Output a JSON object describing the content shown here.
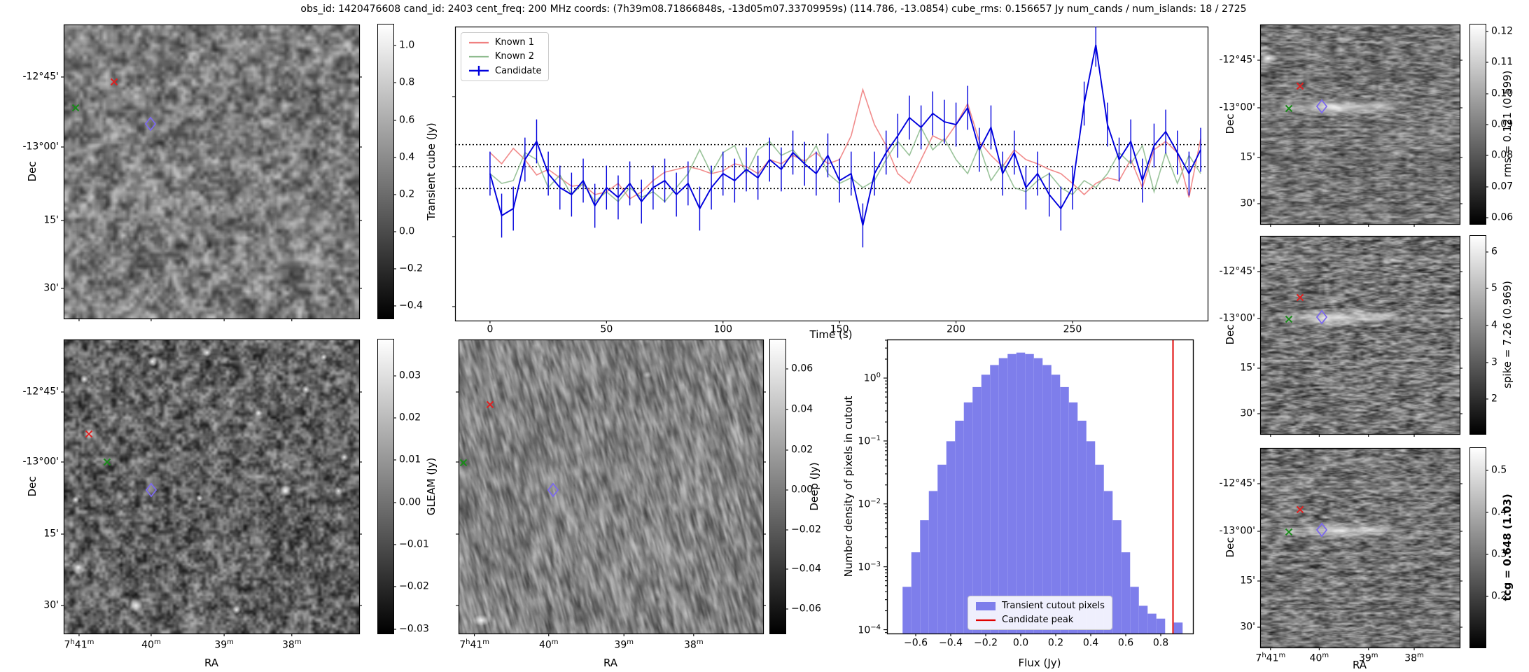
{
  "title": "obs_id: 1420476608 cand_id: 2403 cent_freq: 200 MHz coords: (7h39m08.71866848s, -13d05m07.33709959s) (114.786, -13.0854) cube_rms: 0.156657 Jy num_cands / num_islands: 18 / 2725",
  "colors": {
    "known1": "#f08080",
    "known2": "#8fbc8f",
    "candidate": "#0000dd",
    "hist_bar": "#7e7eeb",
    "candidate_peak": "#e00000",
    "marker_red": "#dd2222",
    "marker_green": "#1a8a1a",
    "marker_diamond": "#7b68ee",
    "dotted_line": "#000000"
  },
  "axes": {
    "dec_label": "Dec",
    "ra_label": "RA",
    "dec_ticks": [
      "-12°45'",
      "-13°00'",
      "15'",
      "30'"
    ],
    "ra_ticks": [
      "7h41m",
      "40m",
      "39m",
      "38m"
    ]
  },
  "panels": {
    "transient_cube": {
      "colorbar_label": "Transient cube (Jy)",
      "cb_ticks": [
        "1.0",
        "0.8",
        "0.6",
        "0.4",
        "0.2",
        "0.0",
        "−0.2",
        "−0.4"
      ]
    },
    "lightcurve": {
      "xlabel": "Time (s)",
      "xticks": [
        "0",
        "50",
        "100",
        "150",
        "200",
        "250"
      ]
    },
    "gleam": {
      "colorbar_label": "GLEAM (Jy)",
      "cb_ticks": [
        "0.03",
        "0.02",
        "0.01",
        "0.00",
        "−0.01",
        "−0.02",
        "−0.03"
      ]
    },
    "deep": {
      "colorbar_label": "Deep (Jy)",
      "cb_ticks": [
        "0.06",
        "0.04",
        "0.02",
        "0.00",
        "−0.02",
        "−0.04",
        "−0.06"
      ]
    },
    "histogram": {
      "ylabel": "Number density of pixels in cutout",
      "xlabel": "Flux (Jy)",
      "yticks": [
        "10^0",
        "10^−1",
        "10^−2",
        "10^−3",
        "10^−4"
      ],
      "xticks": [
        "−0.6",
        "−0.4",
        "−0.2",
        "0.0",
        "0.2",
        "0.4",
        "0.6",
        "0.8"
      ],
      "legend": [
        "Transient cutout pixels",
        "Candidate peak"
      ]
    },
    "right_panels": [
      {
        "colorbar_label": "rms = 0.121 (0.599)",
        "cb_ticks": [
          "0.12",
          "0.11",
          "0.10",
          "0.09",
          "0.08",
          "0.07",
          "0.06"
        ]
      },
      {
        "colorbar_label": "spike = 7.26 (0.969)",
        "cb_ticks": [
          "6",
          "5",
          "4",
          "3",
          "2"
        ]
      },
      {
        "colorbar_label": "tcg = 0.648 (1.03)",
        "cb_ticks": [
          "0.5",
          "0.4",
          "0.3",
          "0.2"
        ]
      }
    ]
  },
  "chart_data": [
    {
      "type": "line",
      "title": "",
      "xlabel": "Time (s)",
      "ylabel": "",
      "xlim": [
        -15,
        308
      ],
      "ylim": [
        -1.1,
        1.0
      ],
      "hlines": [
        0.157,
        0.0,
        -0.157
      ],
      "legend_position": "upper left",
      "x": [
        0,
        5,
        10,
        15,
        20,
        25,
        30,
        35,
        40,
        45,
        50,
        55,
        60,
        65,
        70,
        75,
        80,
        85,
        90,
        95,
        100,
        105,
        110,
        115,
        120,
        125,
        130,
        135,
        140,
        145,
        150,
        155,
        160,
        165,
        170,
        175,
        180,
        185,
        190,
        195,
        200,
        205,
        210,
        215,
        220,
        225,
        230,
        235,
        240,
        245,
        250,
        255,
        260,
        265,
        270,
        275,
        280,
        285,
        290,
        295,
        300,
        305
      ],
      "series": [
        {
          "name": "Known 1",
          "values": [
            0.1,
            0.02,
            0.13,
            0.05,
            -0.06,
            -0.02,
            -0.08,
            -0.14,
            -0.13,
            -0.2,
            -0.18,
            -0.12,
            -0.23,
            -0.18,
            -0.1,
            -0.04,
            -0.02,
            0.0,
            -0.02,
            -0.05,
            -0.03,
            0.02,
            0.0,
            -0.05,
            0.05,
            0.02,
            0.08,
            0.04,
            0.1,
            0.02,
            0.05,
            0.22,
            0.55,
            0.3,
            0.15,
            -0.05,
            -0.12,
            0.05,
            0.22,
            0.18,
            0.3,
            0.45,
            0.18,
            0.08,
            0.0,
            0.12,
            0.05,
            0.02,
            -0.02,
            -0.05,
            -0.12,
            -0.2,
            -0.12,
            -0.08,
            -0.1,
            0.05,
            -0.15,
            0.12,
            0.18,
            0.1,
            -0.22,
            0.2
          ]
        },
        {
          "name": "Known 2",
          "values": [
            -0.05,
            -0.12,
            -0.1,
            0.1,
            0.05,
            -0.15,
            -0.06,
            -0.2,
            -0.12,
            -0.25,
            -0.18,
            -0.25,
            -0.15,
            -0.22,
            -0.18,
            -0.25,
            -0.15,
            -0.05,
            0.12,
            -0.05,
            0.1,
            0.15,
            -0.05,
            0.12,
            0.18,
            0.08,
            0.12,
            0.02,
            0.15,
            -0.05,
            -0.12,
            -0.08,
            -0.15,
            -0.1,
            0.05,
            0.18,
            0.08,
            0.28,
            0.12,
            0.2,
            0.05,
            -0.05,
            0.15,
            -0.1,
            0.02,
            -0.15,
            -0.18,
            -0.1,
            -0.05,
            -0.15,
            -0.2,
            -0.1,
            -0.15,
            -0.05,
            0.1,
            0.02,
            0.15,
            -0.18,
            0.1,
            -0.12,
            0.08,
            -0.05
          ]
        },
        {
          "name": "Candidate",
          "yerr": 0.157,
          "values": [
            -0.05,
            -0.35,
            -0.3,
            0.05,
            0.18,
            -0.05,
            -0.15,
            -0.2,
            -0.1,
            -0.28,
            -0.15,
            -0.22,
            -0.12,
            -0.25,
            -0.15,
            -0.1,
            -0.2,
            -0.12,
            -0.3,
            -0.15,
            -0.05,
            -0.1,
            -0.02,
            -0.08,
            0.05,
            -0.02,
            0.1,
            0.02,
            -0.05,
            0.08,
            -0.1,
            -0.05,
            -0.42,
            -0.05,
            0.1,
            0.22,
            0.35,
            0.28,
            0.38,
            0.32,
            0.3,
            0.42,
            0.12,
            0.28,
            -0.05,
            0.1,
            -0.15,
            -0.05,
            -0.2,
            -0.3,
            -0.15,
            0.45,
            0.87,
            0.3,
            0.05,
            0.18,
            -0.1,
            0.15,
            0.25,
            0.1,
            -0.05,
            0.12
          ]
        }
      ]
    },
    {
      "type": "bar",
      "title": "",
      "xlabel": "Flux (Jy)",
      "ylabel": "Number density of pixels in cutout",
      "yscale": "log",
      "xlim": [
        -0.764,
        0.984
      ],
      "ylim": [
        8.7e-05,
        4.1
      ],
      "bin_width": 0.05,
      "centers": [
        -0.65,
        -0.6,
        -0.55,
        -0.5,
        -0.45,
        -0.4,
        -0.35,
        -0.3,
        -0.25,
        -0.2,
        -0.15,
        -0.1,
        -0.05,
        0.0,
        0.05,
        0.1,
        0.15,
        0.2,
        0.25,
        0.3,
        0.35,
        0.4,
        0.45,
        0.5,
        0.55,
        0.6,
        0.65,
        0.7,
        0.75,
        0.8,
        0.9
      ],
      "values": [
        0.00048,
        0.0017,
        0.0055,
        0.016,
        0.042,
        0.099,
        0.21,
        0.41,
        0.72,
        1.13,
        1.61,
        2.07,
        2.41,
        2.54,
        2.41,
        2.07,
        1.61,
        1.13,
        0.72,
        0.41,
        0.21,
        0.099,
        0.042,
        0.016,
        0.0055,
        0.0017,
        0.00048,
        0.00024,
        0.00018,
        0.00015,
        0.00013
      ],
      "vline": {
        "x": 0.87,
        "label": "Candidate peak"
      },
      "legend_position": "lower center"
    }
  ]
}
